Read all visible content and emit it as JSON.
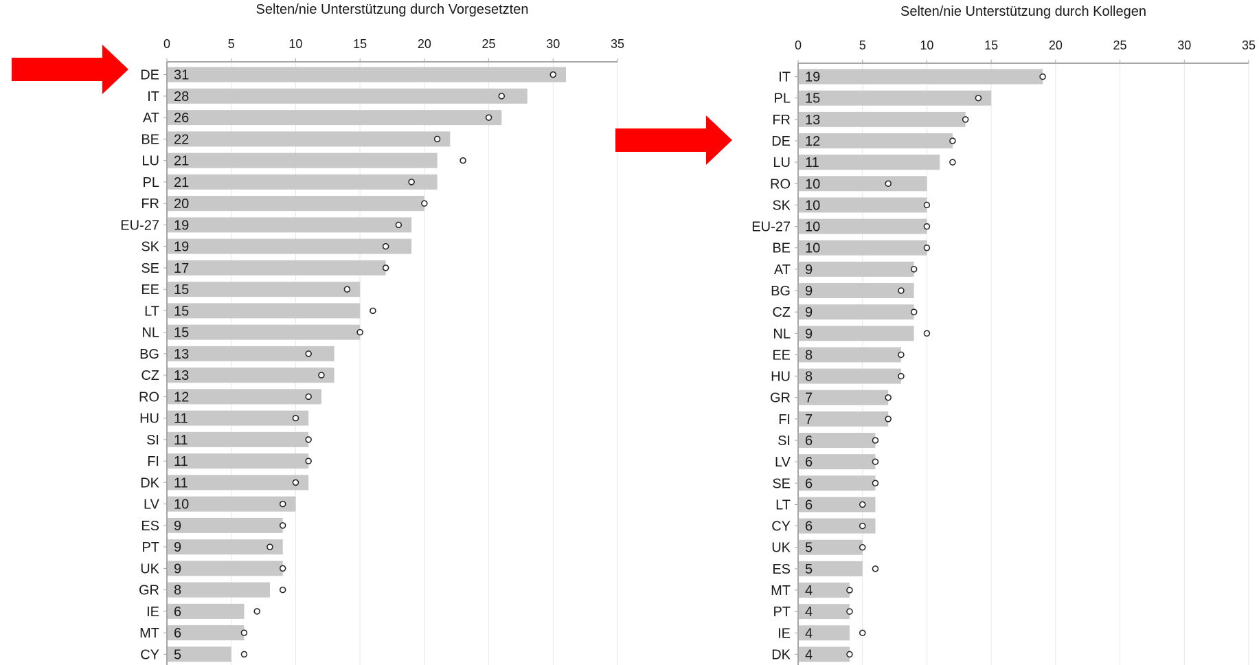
{
  "colors": {
    "bar": "#c8c8c8",
    "axis": "#a6a6a6",
    "grid": "#e6e6e6",
    "text": "#1a1a1a",
    "arrow": "#ff0000"
  },
  "chart_data": [
    {
      "type": "bar",
      "orientation": "horizontal",
      "title": "Selten/nie Unterstützung durch Vorgesetzten",
      "xlim": [
        0,
        35
      ],
      "xticks": [
        0,
        5,
        10,
        15,
        20,
        25,
        30,
        35
      ],
      "grid": true,
      "categories": [
        "DE",
        "IT",
        "AT",
        "BE",
        "LU",
        "PL",
        "FR",
        "EU-27",
        "SK",
        "SE",
        "EE",
        "LT",
        "NL",
        "BG",
        "CZ",
        "RO",
        "HU",
        "SI",
        "FI",
        "DK",
        "LV",
        "ES",
        "PT",
        "UK",
        "GR",
        "IE",
        "MT",
        "CY"
      ],
      "values": [
        31,
        28,
        26,
        22,
        21,
        21,
        20,
        19,
        19,
        17,
        15,
        15,
        15,
        13,
        13,
        12,
        11,
        11,
        11,
        11,
        10,
        9,
        9,
        9,
        8,
        6,
        6,
        5
      ],
      "markers": [
        30,
        26,
        25,
        21,
        23,
        19,
        20,
        18,
        17,
        17,
        14,
        16,
        15,
        11,
        12,
        11,
        10,
        11,
        11,
        10,
        9,
        9,
        8,
        9,
        9,
        7,
        6,
        6
      ],
      "highlight": "DE"
    },
    {
      "type": "bar",
      "orientation": "horizontal",
      "title": "Selten/nie Unterstützung durch Kollegen",
      "xlim": [
        0,
        35
      ],
      "xticks": [
        0,
        5,
        10,
        15,
        20,
        25,
        30,
        35
      ],
      "grid": true,
      "categories": [
        "IT",
        "PL",
        "FR",
        "DE",
        "LU",
        "RO",
        "SK",
        "EU-27",
        "BE",
        "AT",
        "BG",
        "CZ",
        "NL",
        "EE",
        "HU",
        "GR",
        "FI",
        "SI",
        "LV",
        "SE",
        "LT",
        "CY",
        "UK",
        "ES",
        "MT",
        "PT",
        "IE",
        "DK"
      ],
      "values": [
        19,
        15,
        13,
        12,
        11,
        10,
        10,
        10,
        10,
        9,
        9,
        9,
        9,
        8,
        8,
        7,
        7,
        6,
        6,
        6,
        6,
        6,
        5,
        5,
        4,
        4,
        4,
        4
      ],
      "markers": [
        19,
        14,
        13,
        12,
        12,
        7,
        10,
        10,
        10,
        9,
        8,
        9,
        10,
        8,
        8,
        7,
        7,
        6,
        6,
        6,
        5,
        5,
        5,
        6,
        4,
        4,
        5,
        4
      ],
      "highlight": "DE"
    }
  ]
}
